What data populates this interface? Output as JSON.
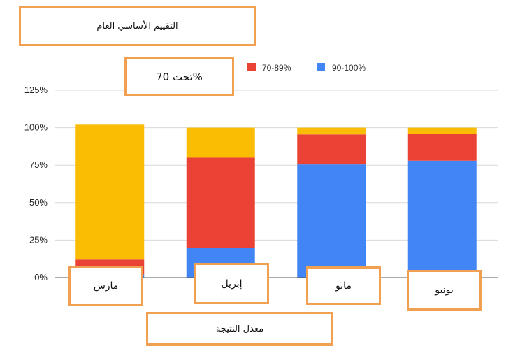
{
  "chart_data": {
    "type": "bar",
    "stacked": true,
    "title": "التقييم الأساسي العام",
    "annotation": "تحت 70%",
    "xlabel": "معدل النتيجة",
    "ylabel": "",
    "categories": [
      "مارس",
      "إبريل",
      "مايو",
      "يونيو"
    ],
    "series": [
      {
        "name": "90-100%",
        "color": "#4285f4",
        "values": [
          2,
          20,
          75.5,
          78
        ]
      },
      {
        "name": "70-89%",
        "color": "#ea4335",
        "values": [
          10,
          60,
          20,
          18
        ]
      },
      {
        "name": "تحت 70%",
        "color": "#fbbc04",
        "values": [
          90,
          20,
          4.5,
          4
        ]
      }
    ],
    "legend": {
      "position": "top",
      "entries": [
        {
          "label": "70-89%",
          "color": "#ea4335"
        },
        {
          "label": "90-100%",
          "color": "#4285f4"
        }
      ]
    },
    "ylim": [
      0,
      125
    ],
    "yticks": [
      "0%",
      "25%",
      "50%",
      "75%",
      "100%",
      "125%"
    ],
    "grid": true
  }
}
